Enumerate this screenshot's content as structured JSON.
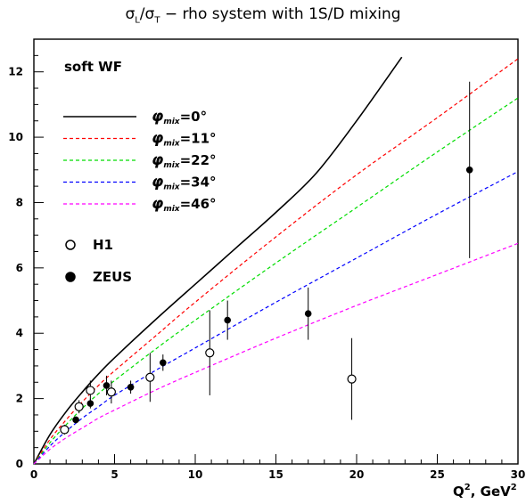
{
  "chart_data": {
    "type": "line",
    "title_parts": {
      "sym1": "σ",
      "sub1": "L",
      "slash": "/",
      "sym2": "σ",
      "sub2": "T",
      "rest": " − rho system with 1S/D mixing"
    },
    "xlabel": {
      "main": "Q",
      "sup": "2",
      "rest": ", GeV",
      "sup2": "2"
    },
    "xlim": [
      0,
      30
    ],
    "ylim": [
      0,
      13
    ],
    "xticks": [
      0,
      5,
      10,
      15,
      20,
      25,
      30
    ],
    "yticks": [
      0,
      2,
      4,
      6,
      8,
      10,
      12
    ],
    "annotation": "soft WF",
    "legend_position": "upper-left",
    "series": [
      {
        "name": "φmix=0°",
        "phi": "φ",
        "sub": "mix",
        "value": "=0°",
        "color": "#000000",
        "style": "solid",
        "points": [
          [
            0,
            0
          ],
          [
            1,
            0.9
          ],
          [
            2,
            1.6
          ],
          [
            3,
            2.2
          ],
          [
            4,
            2.75
          ],
          [
            5,
            3.25
          ],
          [
            7.5,
            4.4
          ],
          [
            10,
            5.5
          ],
          [
            12.5,
            6.6
          ],
          [
            15,
            7.7
          ],
          [
            17.5,
            8.9
          ],
          [
            20,
            10.5
          ],
          [
            22.8,
            12.45
          ]
        ]
      },
      {
        "name": "φmix=11°",
        "phi": "φ",
        "sub": "mix",
        "value": "=11°",
        "color": "#ff0000",
        "style": "dashed",
        "points": [
          [
            0,
            0
          ],
          [
            1,
            0.75
          ],
          [
            2,
            1.35
          ],
          [
            3,
            1.9
          ],
          [
            4,
            2.4
          ],
          [
            5,
            2.85
          ],
          [
            7.5,
            3.9
          ],
          [
            10,
            4.95
          ],
          [
            15,
            6.95
          ],
          [
            20,
            8.85
          ],
          [
            25,
            10.6
          ],
          [
            30,
            12.4
          ]
        ]
      },
      {
        "name": "φmix=22°",
        "phi": "φ",
        "sub": "mix",
        "value": "=22°",
        "color": "#00dd00",
        "style": "dashed",
        "points": [
          [
            0,
            0
          ],
          [
            1,
            0.65
          ],
          [
            2,
            1.2
          ],
          [
            3,
            1.7
          ],
          [
            4,
            2.15
          ],
          [
            5,
            2.55
          ],
          [
            7.5,
            3.5
          ],
          [
            10,
            4.4
          ],
          [
            15,
            6.15
          ],
          [
            20,
            7.85
          ],
          [
            25,
            9.55
          ],
          [
            30,
            11.2
          ]
        ]
      },
      {
        "name": "φmix=34°",
        "phi": "φ",
        "sub": "mix",
        "value": "=34°",
        "color": "#0000ff",
        "style": "dashed",
        "points": [
          [
            0,
            0
          ],
          [
            1,
            0.55
          ],
          [
            2,
            1.0
          ],
          [
            3,
            1.4
          ],
          [
            4,
            1.75
          ],
          [
            5,
            2.1
          ],
          [
            7.5,
            2.85
          ],
          [
            10,
            3.55
          ],
          [
            15,
            4.95
          ],
          [
            20,
            6.3
          ],
          [
            25,
            7.65
          ],
          [
            30,
            8.95
          ]
        ]
      },
      {
        "name": "φmix=46°",
        "phi": "φ",
        "sub": "mix",
        "value": "=46°",
        "color": "#ff00ff",
        "style": "dashed",
        "points": [
          [
            0,
            0
          ],
          [
            1,
            0.45
          ],
          [
            2,
            0.8
          ],
          [
            3,
            1.1
          ],
          [
            4,
            1.4
          ],
          [
            5,
            1.65
          ],
          [
            7.5,
            2.25
          ],
          [
            10,
            2.8
          ],
          [
            15,
            3.85
          ],
          [
            20,
            4.85
          ],
          [
            25,
            5.8
          ],
          [
            30,
            6.75
          ]
        ]
      }
    ],
    "data_sets": [
      {
        "name": "H1",
        "marker": "open-circle",
        "points": [
          {
            "x": 1.9,
            "y": 1.05,
            "err": 0.15
          },
          {
            "x": 2.8,
            "y": 1.75,
            "err": 0.2
          },
          {
            "x": 3.5,
            "y": 2.25,
            "err": 0.3
          },
          {
            "x": 4.8,
            "y": 2.2,
            "err": 0.35
          },
          {
            "x": 7.2,
            "y": 2.65,
            "err": 0.75
          },
          {
            "x": 10.9,
            "y": 3.4,
            "err": 1.3
          },
          {
            "x": 19.7,
            "y": 2.6,
            "err": 1.25
          }
        ]
      },
      {
        "name": "ZEUS",
        "marker": "filled-circle",
        "points": [
          {
            "x": 2.6,
            "y": 1.35,
            "err": 0.1
          },
          {
            "x": 3.5,
            "y": 1.85,
            "err": 0.15
          },
          {
            "x": 4.5,
            "y": 2.4,
            "err": 0.3
          },
          {
            "x": 6.0,
            "y": 2.35,
            "err": 0.2
          },
          {
            "x": 8.0,
            "y": 3.1,
            "err": 0.25
          },
          {
            "x": 12.0,
            "y": 4.4,
            "err": 0.6
          },
          {
            "x": 17.0,
            "y": 4.6,
            "err": 0.8
          },
          {
            "x": 27.0,
            "y": 9.0,
            "err": 2.7
          }
        ]
      }
    ]
  }
}
